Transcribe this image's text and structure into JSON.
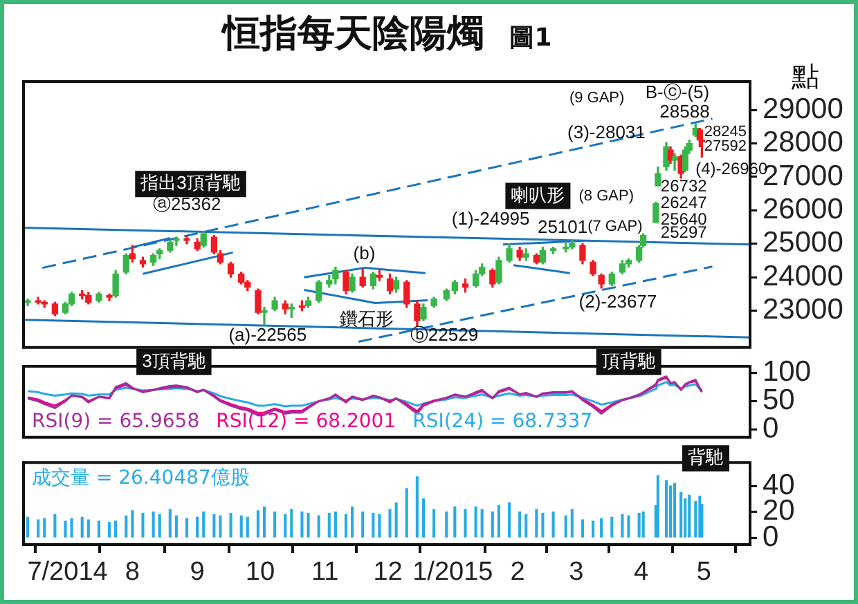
{
  "chart_data": [
    {
      "type": "candlestick",
      "title": "恒指每天陰陽燭",
      "subtitle": "圖1",
      "ylabel": "點",
      "x": [
        "2014-06-12",
        "2014-06-17",
        "2014-06-20",
        "2014-06-25",
        "2014-06-30",
        "2014-07-03",
        "2014-07-08",
        "2014-07-11",
        "2014-07-16",
        "2014-07-21",
        "2014-07-24",
        "2014-07-29",
        "2014-08-01",
        "2014-08-06",
        "2014-08-11",
        "2014-08-14",
        "2014-08-19",
        "2014-08-22",
        "2014-08-27",
        "2014-09-01",
        "2014-09-04",
        "2014-09-09",
        "2014-09-12",
        "2014-09-17",
        "2014-09-22",
        "2014-09-25",
        "2014-09-30",
        "2014-10-03",
        "2014-10-08",
        "2014-10-13",
        "2014-10-16",
        "2014-10-21",
        "2014-10-24",
        "2014-10-29",
        "2014-11-03",
        "2014-11-06",
        "2014-11-11",
        "2014-11-14",
        "2014-11-19",
        "2014-11-24",
        "2014-11-27",
        "2014-12-02",
        "2014-12-05",
        "2014-12-10",
        "2014-12-15",
        "2014-12-18",
        "2014-12-23",
        "2014-12-29",
        "2015-01-02",
        "2015-01-07",
        "2015-01-12",
        "2015-01-15",
        "2015-01-20",
        "2015-01-23",
        "2015-01-28",
        "2015-02-02",
        "2015-02-05",
        "2015-02-10",
        "2015-02-13",
        "2015-02-18",
        "2015-02-24",
        "2015-02-27",
        "2015-03-04",
        "2015-03-09",
        "2015-03-13",
        "2015-03-18",
        "2015-03-23",
        "2015-03-26",
        "2015-03-31",
        "2015-04-02",
        "2015-04-08",
        "2015-04-09",
        "2015-04-13",
        "2015-04-15",
        "2015-04-17",
        "2015-04-20",
        "2015-04-22",
        "2015-04-24",
        "2015-04-27",
        "2015-04-29",
        "2015-04-30"
      ],
      "ohlc": [
        [
          23250,
          23350,
          23150,
          23300
        ],
        [
          23300,
          23400,
          23200,
          23250
        ],
        [
          23250,
          23300,
          23100,
          23200
        ],
        [
          23200,
          23250,
          22850,
          22900
        ],
        [
          22950,
          23250,
          22900,
          23200
        ],
        [
          23200,
          23550,
          23150,
          23500
        ],
        [
          23500,
          23600,
          23350,
          23450
        ],
        [
          23450,
          23550,
          23200,
          23250
        ],
        [
          23300,
          23550,
          23250,
          23500
        ],
        [
          23450,
          23500,
          23300,
          23400
        ],
        [
          23450,
          24200,
          23400,
          24100
        ],
        [
          24150,
          24700,
          24100,
          24650
        ],
        [
          24700,
          24950,
          24450,
          24550
        ],
        [
          24500,
          24600,
          24300,
          24400
        ],
        [
          24450,
          24700,
          24350,
          24650
        ],
        [
          24700,
          24850,
          24550,
          24800
        ],
        [
          24800,
          25100,
          24750,
          25050
        ],
        [
          25100,
          25200,
          24950,
          25150
        ],
        [
          25150,
          25250,
          25000,
          25100
        ],
        [
          25050,
          25150,
          24800,
          24850
        ],
        [
          24950,
          25362,
          24900,
          25300
        ],
        [
          25200,
          25250,
          24700,
          24750
        ],
        [
          24700,
          24800,
          24400,
          24450
        ],
        [
          24400,
          24450,
          24000,
          24100
        ],
        [
          24100,
          24150,
          23800,
          23850
        ],
        [
          23850,
          23900,
          23600,
          23700
        ],
        [
          23600,
          23650,
          22900,
          22950
        ],
        [
          22950,
          23100,
          22565,
          23000
        ],
        [
          23050,
          23400,
          23000,
          23300
        ],
        [
          23200,
          23300,
          22900,
          23050
        ],
        [
          23050,
          23200,
          22800,
          23100
        ],
        [
          23150,
          23300,
          23000,
          23100
        ],
        [
          23150,
          23400,
          23100,
          23300
        ],
        [
          23300,
          23900,
          23250,
          23850
        ],
        [
          23800,
          24050,
          23700,
          23900
        ],
        [
          23950,
          24300,
          23800,
          24200
        ],
        [
          24150,
          24200,
          23500,
          23600
        ],
        [
          23600,
          24100,
          23550,
          24000
        ],
        [
          24000,
          24250,
          23700,
          23750
        ],
        [
          23750,
          24150,
          23650,
          24100
        ],
        [
          24050,
          24200,
          23900,
          24000
        ],
        [
          23950,
          24100,
          23500,
          23600
        ],
        [
          23650,
          24000,
          23550,
          23900
        ],
        [
          23850,
          23900,
          23100,
          23200
        ],
        [
          23200,
          23300,
          22529,
          22700
        ],
        [
          22750,
          23200,
          22700,
          23100
        ],
        [
          23150,
          23400,
          23100,
          23350
        ],
        [
          23350,
          23650,
          23300,
          23600
        ],
        [
          23600,
          23900,
          23500,
          23850
        ],
        [
          23800,
          23950,
          23550,
          23700
        ],
        [
          23750,
          24200,
          23700,
          24100
        ],
        [
          24100,
          24400,
          24050,
          24300
        ],
        [
          24200,
          24250,
          23700,
          23800
        ],
        [
          23850,
          24600,
          23800,
          24500
        ],
        [
          24500,
          24995,
          24450,
          24850
        ],
        [
          24800,
          24900,
          24500,
          24600
        ],
        [
          24600,
          24850,
          24500,
          24700
        ],
        [
          24650,
          24700,
          24400,
          24450
        ],
        [
          24450,
          24900,
          24400,
          24800
        ],
        [
          24800,
          24900,
          24700,
          24850
        ],
        [
          24850,
          25000,
          24750,
          24900
        ],
        [
          24900,
          25101,
          24850,
          25000
        ],
        [
          24950,
          25000,
          24400,
          24500
        ],
        [
          24450,
          24500,
          24050,
          24100
        ],
        [
          24050,
          24100,
          23677,
          23800
        ],
        [
          23800,
          24150,
          23750,
          24100
        ],
        [
          24150,
          24500,
          24100,
          24400
        ],
        [
          24400,
          24550,
          24300,
          24500
        ],
        [
          24500,
          24950,
          24450,
          24900
        ],
        [
          24950,
          25297,
          24900,
          25250
        ],
        [
          25640,
          26247,
          25640,
          26200
        ],
        [
          26732,
          27300,
          26732,
          27100
        ],
        [
          27300,
          28031,
          27200,
          27900
        ],
        [
          27800,
          27900,
          27400,
          27500
        ],
        [
          27500,
          27700,
          27200,
          27600
        ],
        [
          27600,
          27650,
          26960,
          27100
        ],
        [
          27200,
          27900,
          27150,
          27800
        ],
        [
          27800,
          28100,
          27700,
          28000
        ],
        [
          28245,
          28588,
          28200,
          28450
        ],
        [
          28400,
          28450,
          27900,
          28100
        ],
        [
          28100,
          28200,
          27592,
          28050
        ]
      ],
      "colors": [
        "#39b54a",
        "#ed1c24",
        "#ed1c24",
        "#ed1c24",
        "#39b54a",
        "#39b54a",
        "#ed1c24",
        "#ed1c24",
        "#39b54a",
        "#ed1c24",
        "#39b54a",
        "#39b54a",
        "#ed1c24",
        "#ed1c24",
        "#39b54a",
        "#39b54a",
        "#39b54a",
        "#39b54a",
        "#ed1c24",
        "#ed1c24",
        "#39b54a",
        "#ed1c24",
        "#ed1c24",
        "#ed1c24",
        "#ed1c24",
        "#ed1c24",
        "#ed1c24",
        "#39b54a",
        "#39b54a",
        "#ed1c24",
        "#39b54a",
        "#ed1c24",
        "#39b54a",
        "#39b54a",
        "#39b54a",
        "#39b54a",
        "#ed1c24",
        "#39b54a",
        "#ed1c24",
        "#39b54a",
        "#ed1c24",
        "#ed1c24",
        "#39b54a",
        "#ed1c24",
        "#ed1c24",
        "#39b54a",
        "#39b54a",
        "#39b54a",
        "#39b54a",
        "#ed1c24",
        "#39b54a",
        "#39b54a",
        "#ed1c24",
        "#39b54a",
        "#39b54a",
        "#ed1c24",
        "#39b54a",
        "#ed1c24",
        "#39b54a",
        "#39b54a",
        "#39b54a",
        "#39b54a",
        "#ed1c24",
        "#ed1c24",
        "#ed1c24",
        "#39b54a",
        "#39b54a",
        "#39b54a",
        "#39b54a",
        "#39b54a",
        "#39b54a",
        "#39b54a",
        "#39b54a",
        "#ed1c24",
        "#39b54a",
        "#ed1c24",
        "#39b54a",
        "#39b54a",
        "#39b54a",
        "#ed1c24",
        "#ed1c24"
      ],
      "series": [
        {
          "type": "line",
          "color": "#1b75bb",
          "line_style": "solid",
          "x": [
            "2014-06-10",
            "2015-05-23"
          ],
          "values": [
            25480,
            24980
          ]
        },
        {
          "type": "line",
          "color": "#1b75bb",
          "line_style": "solid",
          "x": [
            "2014-06-10",
            "2015-05-23"
          ],
          "values": [
            22730,
            22200
          ]
        },
        {
          "type": "line",
          "color": "#1b75bb",
          "line_style": "dashed",
          "x": [
            "2014-06-19",
            "2015-05-05"
          ],
          "values": [
            24280,
            28740
          ]
        },
        {
          "type": "line",
          "color": "#1b75bb",
          "line_style": "dashed",
          "x": [
            "2014-11-17",
            "2015-05-05"
          ],
          "values": [
            22070,
            24320
          ]
        },
        {
          "type": "line",
          "color": "#1b75bb",
          "line_style": "solid",
          "x": [
            "2014-08-01",
            "2014-08-19"
          ],
          "values": [
            24900,
            25170
          ]
        },
        {
          "type": "line",
          "color": "#1b75bb",
          "line_style": "solid",
          "x": [
            "2014-08-06",
            "2014-09-18"
          ],
          "values": [
            24100,
            24740
          ]
        },
        {
          "type": "line",
          "color": "#1b75bb",
          "line_style": "solid",
          "x": [
            "2014-10-22",
            "2014-11-20",
            "2014-12-19"
          ],
          "values": [
            24000,
            24280,
            24120
          ]
        },
        {
          "type": "line",
          "color": "#1b75bb",
          "line_style": "solid",
          "x": [
            "2014-10-22",
            "2014-11-25",
            "2014-12-20"
          ],
          "values": [
            23620,
            23230,
            23310
          ]
        },
        {
          "type": "line",
          "color": "#1b75bb",
          "line_style": "solid",
          "x": [
            "2015-01-25",
            "2015-03-05"
          ],
          "values": [
            24980,
            25090
          ]
        },
        {
          "type": "line",
          "color": "#1b75bb",
          "line_style": "solid",
          "x": [
            "2015-01-30",
            "2015-02-26"
          ],
          "values": [
            24360,
            24120
          ]
        }
      ],
      "xlim": [
        "2014-06-10",
        "2015-05-23"
      ],
      "ylim": [
        21900,
        29850
      ],
      "yticks": [
        23000,
        24000,
        25000,
        26000,
        27000,
        28000,
        29000
      ],
      "tick_labels": "y",
      "grid": false,
      "annotations": [
        "指出3頂背馳",
        "ⓐ25362",
        "(a)-22565",
        "(b)",
        "鑽石形",
        "ⓑ22529",
        "(1)-24995",
        "喇叭形",
        "25101",
        "(2)-23677",
        "(3)-28031",
        "(9 GAP)",
        "B-ⓒ-(5)",
        "28588",
        "28245",
        "27592",
        "(4)-26960",
        "26732",
        "(8 GAP)",
        "26247",
        "25640",
        "(7 GAP)",
        "25297"
      ]
    },
    {
      "type": "line",
      "x": [
        "2014-06-12",
        "2014-06-17",
        "2014-06-20",
        "2014-06-25",
        "2014-06-30",
        "2014-07-03",
        "2014-07-08",
        "2014-07-11",
        "2014-07-16",
        "2014-07-21",
        "2014-07-24",
        "2014-07-29",
        "2014-08-01",
        "2014-08-06",
        "2014-08-11",
        "2014-08-14",
        "2014-08-19",
        "2014-08-22",
        "2014-08-27",
        "2014-09-01",
        "2014-09-04",
        "2014-09-09",
        "2014-09-12",
        "2014-09-17",
        "2014-09-22",
        "2014-09-25",
        "2014-09-30",
        "2014-10-03",
        "2014-10-08",
        "2014-10-13",
        "2014-10-16",
        "2014-10-21",
        "2014-10-24",
        "2014-10-29",
        "2014-11-03",
        "2014-11-06",
        "2014-11-11",
        "2014-11-14",
        "2014-11-19",
        "2014-11-24",
        "2014-11-27",
        "2014-12-02",
        "2014-12-05",
        "2014-12-10",
        "2014-12-15",
        "2014-12-18",
        "2014-12-23",
        "2014-12-29",
        "2015-01-02",
        "2015-01-07",
        "2015-01-12",
        "2015-01-15",
        "2015-01-20",
        "2015-01-23",
        "2015-01-28",
        "2015-02-02",
        "2015-02-05",
        "2015-02-10",
        "2015-02-13",
        "2015-02-18",
        "2015-02-24",
        "2015-02-27",
        "2015-03-04",
        "2015-03-09",
        "2015-03-13",
        "2015-03-18",
        "2015-03-23",
        "2015-03-26",
        "2015-03-31",
        "2015-04-02",
        "2015-04-08",
        "2015-04-09",
        "2015-04-13",
        "2015-04-15",
        "2015-04-17",
        "2015-04-20",
        "2015-04-22",
        "2015-04-24",
        "2015-04-27",
        "2015-04-29",
        "2015-04-30"
      ],
      "series": [
        {
          "name": "RSI(9) = 65.9658",
          "color": "#a0309a",
          "values": [
            55,
            50,
            45,
            38,
            50,
            60,
            57,
            48,
            58,
            55,
            75,
            82,
            74,
            66,
            70,
            73,
            77,
            78,
            75,
            66,
            70,
            58,
            50,
            42,
            36,
            34,
            25,
            26,
            35,
            28,
            30,
            30,
            38,
            50,
            55,
            62,
            48,
            58,
            52,
            60,
            57,
            48,
            55,
            42,
            28,
            42,
            50,
            56,
            62,
            58,
            66,
            70,
            55,
            68,
            74,
            62,
            65,
            58,
            64,
            66,
            66,
            68,
            52,
            40,
            28,
            42,
            52,
            55,
            62,
            66,
            80,
            88,
            94,
            82,
            84,
            70,
            80,
            84,
            88,
            72,
            66
          ]
        },
        {
          "name": "RSI(12) = 68.2001",
          "color": "#ec008c",
          "values": [
            57,
            53,
            48,
            42,
            52,
            60,
            58,
            50,
            58,
            56,
            73,
            79,
            73,
            67,
            70,
            72,
            75,
            76,
            74,
            67,
            70,
            60,
            52,
            45,
            39,
            37,
            29,
            30,
            37,
            31,
            33,
            33,
            40,
            50,
            55,
            61,
            50,
            58,
            53,
            59,
            57,
            50,
            55,
            45,
            32,
            44,
            51,
            56,
            61,
            58,
            64,
            68,
            56,
            66,
            72,
            62,
            64,
            58,
            63,
            65,
            65,
            67,
            54,
            43,
            32,
            44,
            52,
            55,
            61,
            65,
            78,
            86,
            92,
            82,
            83,
            71,
            79,
            83,
            86,
            73,
            68
          ]
        },
        {
          "name": "RSI(24) = 68.7337",
          "color": "#29abe2",
          "values": [
            68,
            66,
            63,
            60,
            62,
            64,
            63,
            60,
            62,
            62,
            70,
            74,
            72,
            69,
            70,
            71,
            72,
            73,
            72,
            68,
            70,
            64,
            59,
            54,
            50,
            48,
            42,
            42,
            45,
            41,
            42,
            42,
            45,
            50,
            53,
            56,
            51,
            55,
            53,
            56,
            55,
            52,
            54,
            49,
            42,
            46,
            50,
            53,
            57,
            56,
            60,
            62,
            56,
            60,
            64,
            60,
            61,
            58,
            60,
            61,
            61,
            62,
            56,
            50,
            44,
            48,
            53,
            55,
            59,
            62,
            72,
            78,
            84,
            78,
            79,
            72,
            76,
            78,
            80,
            72,
            69
          ]
        }
      ],
      "xlim": [
        "2014-06-10",
        "2015-05-23"
      ],
      "ylim": [
        -14,
        112
      ],
      "yticks": [
        0,
        50,
        100
      ],
      "tick_labels": "y",
      "grid": false,
      "legend": "bottom left",
      "annotations": [
        "3頂背馳",
        "頂背馳"
      ]
    },
    {
      "type": "bar",
      "x": [
        "2014-06-12",
        "2014-06-17",
        "2014-06-20",
        "2014-06-25",
        "2014-06-30",
        "2014-07-03",
        "2014-07-08",
        "2014-07-11",
        "2014-07-16",
        "2014-07-21",
        "2014-07-24",
        "2014-07-29",
        "2014-08-01",
        "2014-08-06",
        "2014-08-11",
        "2014-08-14",
        "2014-08-19",
        "2014-08-22",
        "2014-08-27",
        "2014-09-01",
        "2014-09-04",
        "2014-09-09",
        "2014-09-12",
        "2014-09-17",
        "2014-09-22",
        "2014-09-25",
        "2014-09-30",
        "2014-10-03",
        "2014-10-08",
        "2014-10-13",
        "2014-10-16",
        "2014-10-21",
        "2014-10-24",
        "2014-10-29",
        "2014-11-03",
        "2014-11-06",
        "2014-11-11",
        "2014-11-14",
        "2014-11-19",
        "2014-11-24",
        "2014-11-27",
        "2014-12-02",
        "2014-12-05",
        "2014-12-10",
        "2014-12-15",
        "2014-12-18",
        "2014-12-23",
        "2014-12-29",
        "2015-01-02",
        "2015-01-07",
        "2015-01-12",
        "2015-01-15",
        "2015-01-20",
        "2015-01-23",
        "2015-01-28",
        "2015-02-02",
        "2015-02-05",
        "2015-02-10",
        "2015-02-13",
        "2015-02-18",
        "2015-02-24",
        "2015-02-27",
        "2015-03-04",
        "2015-03-09",
        "2015-03-13",
        "2015-03-18",
        "2015-03-23",
        "2015-03-26",
        "2015-03-31",
        "2015-04-02",
        "2015-04-08",
        "2015-04-09",
        "2015-04-13",
        "2015-04-15",
        "2015-04-17",
        "2015-04-20",
        "2015-04-22",
        "2015-04-24",
        "2015-04-27",
        "2015-04-29",
        "2015-04-30"
      ],
      "series": [
        {
          "name": "成交量 = 26.40487億股",
          "color": "#29abe2",
          "values": [
            16,
            14,
            15,
            18,
            13,
            15,
            16,
            14,
            13,
            12,
            13,
            17,
            21,
            19,
            20,
            18,
            22,
            17,
            15,
            16,
            20,
            18,
            17,
            19,
            17,
            16,
            21,
            24,
            20,
            18,
            22,
            20,
            19,
            17,
            19,
            20,
            18,
            24,
            20,
            19,
            18,
            22,
            27,
            38,
            47,
            30,
            22,
            20,
            24,
            22,
            24,
            22,
            20,
            25,
            27,
            20,
            18,
            22,
            19,
            20,
            17,
            22,
            14,
            13,
            15,
            16,
            18,
            17,
            19,
            20,
            25,
            48,
            44,
            40,
            42,
            35,
            30,
            33,
            28,
            32,
            26
          ]
        }
      ],
      "xlim": [
        "2014-06-10",
        "2015-05-23"
      ],
      "xticks": [
        {
          "value": "2014-07-01",
          "label": "7/2014"
        },
        {
          "value": "2014-08-01",
          "label": "8"
        },
        {
          "value": "2014-09-01",
          "label": "9"
        },
        {
          "value": "2014-10-01",
          "label": "10"
        },
        {
          "value": "2014-11-01",
          "label": "11"
        },
        {
          "value": "2014-12-01",
          "label": "12"
        },
        {
          "value": "2015-01-01",
          "label": "1/2015"
        },
        {
          "value": "2015-02-01",
          "label": "2"
        },
        {
          "value": "2015-03-01",
          "label": "3"
        },
        {
          "value": "2015-04-01",
          "label": "4"
        },
        {
          "value": "2015-05-01",
          "label": "5"
        }
      ],
      "ylim": [
        -5,
        58
      ],
      "yticks": [
        0,
        20,
        40
      ],
      "grid": false,
      "legend": "top left",
      "annotations": [
        "背馳"
      ]
    }
  ]
}
